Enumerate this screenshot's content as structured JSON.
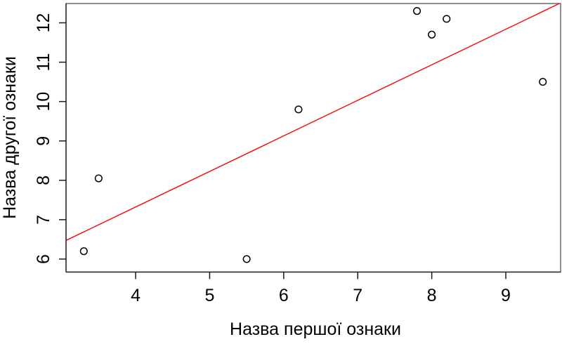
{
  "chart_data": {
    "type": "scatter",
    "title": "",
    "xlabel": "Назва першої ознаки",
    "ylabel": "Назва другої ознаки",
    "points": [
      {
        "x": 3.3,
        "y": 6.2
      },
      {
        "x": 3.5,
        "y": 8.05
      },
      {
        "x": 5.5,
        "y": 6.0
      },
      {
        "x": 6.2,
        "y": 9.8
      },
      {
        "x": 7.8,
        "y": 12.3
      },
      {
        "x": 8.0,
        "y": 11.7
      },
      {
        "x": 8.2,
        "y": 12.1
      },
      {
        "x": 9.5,
        "y": 10.5
      }
    ],
    "x_ticks": [
      4,
      5,
      6,
      7,
      8,
      9
    ],
    "y_ticks": [
      6,
      7,
      8,
      9,
      10,
      11,
      12
    ],
    "xlim": [
      3.06,
      9.74
    ],
    "ylim": [
      5.67,
      12.49
    ],
    "grid": false,
    "legend": "none",
    "regression_line": {
      "slope": 0.903,
      "intercept": 3.71,
      "color": "#ff0000"
    },
    "marker": {
      "shape": "open-circle",
      "stroke_color": "#000000",
      "radius": 4.8
    },
    "colors": {
      "background": "#ffffff",
      "box_border": "#6a6a6a",
      "axis_line": "#333333",
      "tick": "#1a1a1a",
      "text": "#000000"
    }
  }
}
